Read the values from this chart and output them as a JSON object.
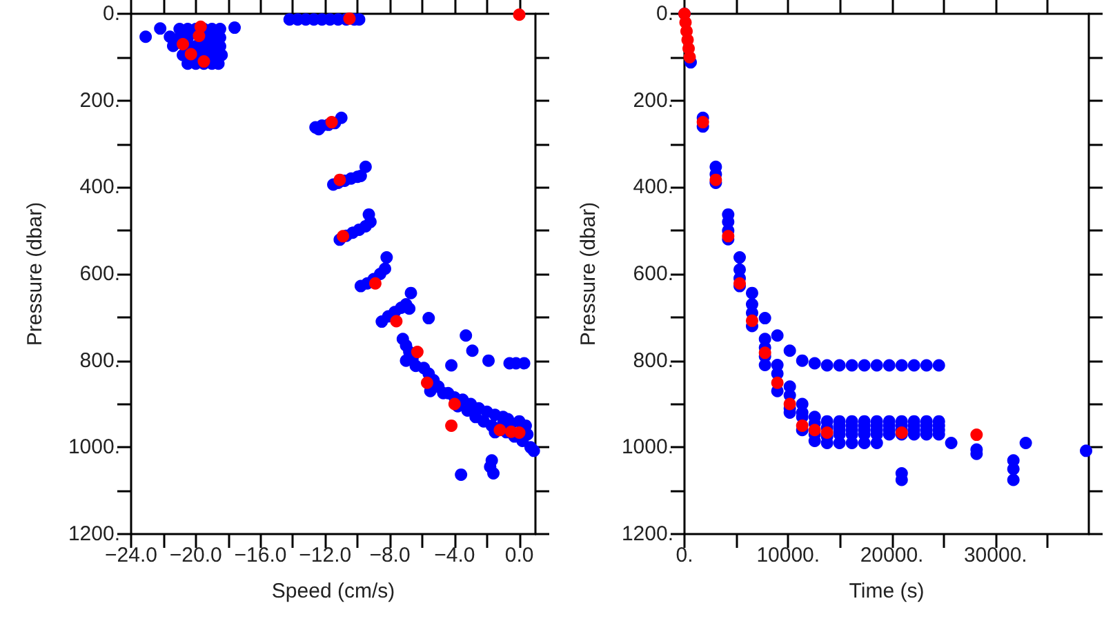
{
  "chart_data": [
    {
      "type": "scatter",
      "xlabel": "Speed (cm/s)",
      "ylabel": "Pressure (dbar)",
      "marker": "circle",
      "grid": false,
      "xlim": [
        -24,
        1
      ],
      "ylim": [
        1200,
        0
      ],
      "xticks": [
        {
          "value": -24,
          "label": "−24.0"
        },
        {
          "value": -22,
          "label": null
        },
        {
          "value": -20,
          "label": "−20.0"
        },
        {
          "value": -18,
          "label": null
        },
        {
          "value": -16,
          "label": "−16.0"
        },
        {
          "value": -14,
          "label": null
        },
        {
          "value": -12,
          "label": "−12.0"
        },
        {
          "value": -10,
          "label": null
        },
        {
          "value": -8,
          "label": "−8.0"
        },
        {
          "value": -6,
          "label": null
        },
        {
          "value": -4,
          "label": "−4.0"
        },
        {
          "value": -2,
          "label": null
        },
        {
          "value": 0,
          "label": "0.0"
        }
      ],
      "yticks": [
        {
          "value": 0,
          "label": "0."
        },
        {
          "value": 100,
          "label": null
        },
        {
          "value": 200,
          "label": "200."
        },
        {
          "value": 300,
          "label": null
        },
        {
          "value": 400,
          "label": "400."
        },
        {
          "value": 500,
          "label": null
        },
        {
          "value": 600,
          "label": "600."
        },
        {
          "value": 700,
          "label": null
        },
        {
          "value": 800,
          "label": "800."
        },
        {
          "value": 900,
          "label": null
        },
        {
          "value": 1000,
          "label": "1000."
        },
        {
          "value": 1100,
          "label": null
        },
        {
          "value": 1200,
          "label": "1200."
        }
      ],
      "series": [
        {
          "color": "#0000ff",
          "x": [
            -23.1,
            -22.2,
            -21.6,
            -21.4,
            -17.6,
            -21.0,
            -20.5,
            -20.0,
            -19.5,
            -19.0,
            -18.5,
            -21.0,
            -20.5,
            -19.5,
            -19.0,
            -18.5,
            -20.5,
            -20.0,
            -19.5,
            -19.0,
            -18.5,
            -20.8,
            -19.8,
            -19.3,
            -18.8,
            -18.4,
            -20.5,
            -20.0,
            -19.5,
            -19.0,
            -18.6,
            -14.2,
            -13.7,
            -13.2,
            -12.7,
            -12.2,
            -11.7,
            -11.2,
            -10.7,
            -10.2,
            -9.9,
            -12.6,
            -12.2,
            -11.8,
            -11.4,
            -11.0,
            -12.4,
            -9.5,
            -11.5,
            -11.2,
            -10.8,
            -10.4,
            -10.0,
            -9.8,
            -9.3,
            -11.1,
            -10.7,
            -10.3,
            -9.9,
            -9.5,
            -9.2,
            -8.2,
            -9.8,
            -9.4,
            -9.0,
            -8.6,
            -8.3,
            -6.7,
            -8.5,
            -8.1,
            -7.7,
            -7.3,
            -7.0,
            -6.8,
            -5.6,
            -3.3,
            -2.9,
            -1.9,
            -0.6,
            -0.2,
            0.3,
            -4.2,
            -7.2,
            -7.0,
            -6.8,
            -6.6,
            -6.4,
            -7.0,
            -5.9,
            -5.6,
            -5.3,
            -5.0,
            -4.7,
            -5.5,
            -4.4,
            -4.0,
            -3.5,
            -3.0,
            -2.5,
            -2.0,
            -1.5,
            -1.0,
            -0.7,
            -3.8,
            -3.2,
            -2.7,
            -2.2,
            -1.7,
            -1.0,
            -0.5,
            0.0,
            0.4,
            -0.8,
            -0.3,
            0.2,
            0.5,
            -1.5,
            0.7,
            0.9,
            -1.7,
            -1.8,
            -1.6,
            -3.6
          ],
          "values": [
            53,
            34,
            53,
            74,
            32,
            35,
            35,
            35,
            35,
            35,
            35,
            55,
            55,
            55,
            55,
            55,
            75,
            75,
            75,
            75,
            75,
            95,
            95,
            95,
            95,
            95,
            115,
            115,
            115,
            115,
            115,
            13,
            13,
            13,
            13,
            13,
            13,
            13,
            13,
            13,
            13,
            262,
            258,
            256,
            252,
            240,
            266,
            353,
            394,
            390,
            385,
            380,
            376,
            374,
            463,
            521,
            512,
            505,
            498,
            490,
            480,
            562,
            628,
            622,
            612,
            600,
            588,
            644,
            710,
            698,
            688,
            678,
            670,
            680,
            702,
            742,
            777,
            800,
            806,
            806,
            806,
            811,
            750,
            765,
            780,
            795,
            812,
            800,
            817,
            830,
            845,
            860,
            875,
            870,
            875,
            885,
            890,
            900,
            910,
            918,
            925,
            930,
            935,
            905,
            915,
            930,
            940,
            950,
            945,
            945,
            940,
            950,
            965,
            975,
            985,
            970,
            965,
            1000,
            1008,
            1030,
            1045,
            1060,
            1063
          ]
        },
        {
          "color": "#ff0000",
          "x": [
            -19.7,
            -19.8,
            -20.8,
            -20.3,
            -19.5,
            -10.5,
            0.0,
            -11.6,
            -11.1,
            -10.9,
            -8.9,
            -7.6,
            -6.3,
            -5.7,
            -4.0,
            -4.2,
            -1.2,
            -0.5,
            0.0
          ],
          "values": [
            30,
            51,
            70,
            93,
            110,
            11,
            2,
            250,
            383,
            513,
            622,
            709,
            780,
            851,
            900,
            950,
            960,
            964,
            966
          ]
        }
      ]
    },
    {
      "type": "scatter",
      "xlabel": "Time (s)",
      "ylabel": "Pressure (dbar)",
      "marker": "circle",
      "grid": false,
      "xlim": [
        0,
        39000
      ],
      "ylim": [
        1200,
        0
      ],
      "xticks": [
        {
          "value": 0,
          "label": "0."
        },
        {
          "value": 5000,
          "label": null
        },
        {
          "value": 10000,
          "label": "10000."
        },
        {
          "value": 15000,
          "label": null
        },
        {
          "value": 20000,
          "label": "20000."
        },
        {
          "value": 25000,
          "label": null
        },
        {
          "value": 30000,
          "label": "30000."
        },
        {
          "value": 35000,
          "label": null
        }
      ],
      "yticks": [
        {
          "value": 0,
          "label": "0."
        },
        {
          "value": 100,
          "label": null
        },
        {
          "value": 200,
          "label": "200."
        },
        {
          "value": 300,
          "label": null
        },
        {
          "value": 400,
          "label": "400."
        },
        {
          "value": 500,
          "label": null
        },
        {
          "value": 600,
          "label": "600."
        },
        {
          "value": 700,
          "label": null
        },
        {
          "value": 800,
          "label": "800."
        },
        {
          "value": 900,
          "label": null
        },
        {
          "value": 1000,
          "label": "1000."
        },
        {
          "value": 1100,
          "label": null
        },
        {
          "value": 1200,
          "label": "1200."
        }
      ],
      "series": [
        {
          "color": "#0000ff",
          "x": [
            0,
            600,
            1775,
            1775,
            3020,
            3020,
            3020,
            4215,
            4215,
            4215,
            4215,
            5325,
            5325,
            5325,
            5325,
            6520,
            6520,
            6520,
            6520,
            7765,
            7765,
            7765,
            7765,
            7765,
            8960,
            8960,
            8960,
            8960,
            10160,
            10160,
            10160,
            10160,
            10160,
            11360,
            11360,
            11360,
            11360,
            11360,
            12560,
            12560,
            12560,
            12560,
            12560,
            13755,
            13755,
            13755,
            13755,
            13755,
            14950,
            14950,
            14950,
            14950,
            14950,
            14950,
            16150,
            16150,
            16150,
            16150,
            16150,
            16150,
            17350,
            17350,
            17350,
            17350,
            17350,
            17350,
            18550,
            18550,
            18550,
            18550,
            18550,
            18550,
            19750,
            19750,
            19750,
            19750,
            19750,
            20950,
            20950,
            20950,
            20950,
            20950,
            20950,
            20950,
            22145,
            22145,
            22145,
            22145,
            22145,
            23345,
            23345,
            23345,
            23345,
            23345,
            24540,
            24540,
            24540,
            24540,
            24540,
            25730,
            28175,
            28175,
            31725,
            31725,
            31725,
            32920,
            38735
          ],
          "values": [
            0,
            112,
            240,
            260,
            353,
            370,
            390,
            463,
            480,
            500,
            520,
            562,
            590,
            610,
            628,
            644,
            670,
            690,
            720,
            702,
            750,
            770,
            790,
            810,
            742,
            810,
            830,
            870,
            777,
            860,
            880,
            910,
            920,
            800,
            900,
            920,
            930,
            960,
            806,
            930,
            945,
            970,
            985,
            811,
            940,
            955,
            975,
            990,
            811,
            940,
            950,
            960,
            970,
            990,
            811,
            940,
            950,
            960,
            970,
            990,
            811,
            940,
            950,
            960,
            970,
            990,
            811,
            940,
            950,
            960,
            970,
            990,
            811,
            940,
            950,
            960,
            970,
            811,
            940,
            950,
            960,
            970,
            1060,
            1075,
            811,
            940,
            950,
            960,
            970,
            811,
            940,
            950,
            960,
            970,
            811,
            940,
            950,
            960,
            970,
            990,
            1005,
            1015,
            1030,
            1050,
            1075,
            990,
            1008
          ]
        },
        {
          "color": "#ff0000",
          "x": [
            0,
            100,
            200,
            300,
            400,
            500,
            1775,
            3020,
            4215,
            5325,
            6520,
            7765,
            8960,
            10160,
            11360,
            12560,
            13755,
            20950,
            28175
          ],
          "values": [
            0,
            20,
            40,
            60,
            80,
            100,
            250,
            383,
            513,
            622,
            708,
            782,
            851,
            900,
            950,
            960,
            966,
            966,
            971
          ]
        }
      ]
    }
  ]
}
